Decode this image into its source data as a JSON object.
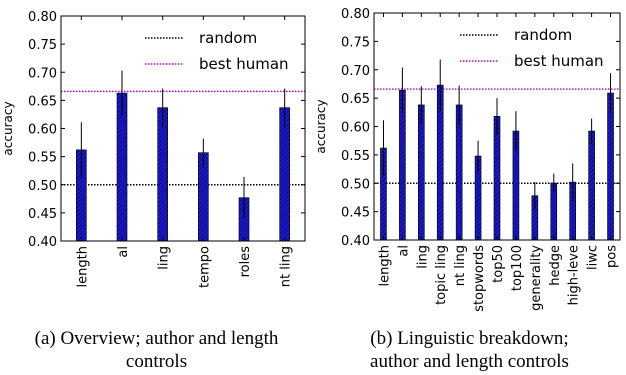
{
  "chart_data": [
    {
      "type": "bar",
      "categories": [
        "length",
        "al",
        "ling",
        "tempo",
        "roles",
        "nt ling"
      ],
      "values": [
        0.562,
        0.663,
        0.637,
        0.557,
        0.477,
        0.637
      ],
      "errors": [
        0.049,
        0.04,
        0.034,
        0.025,
        0.037,
        0.034
      ],
      "ylabel": "accuracy",
      "ylim": [
        0.4,
        0.8
      ],
      "yticks": [
        "0.40",
        "0.45",
        "0.50",
        "0.55",
        "0.60",
        "0.65",
        "0.70",
        "0.75",
        "0.80"
      ],
      "reference_lines": [
        {
          "name": "random",
          "value": 0.5,
          "color": "#000000"
        },
        {
          "name": "best human",
          "value": 0.666,
          "color": "#bf00bf"
        }
      ],
      "bar_color": "#1a1acc",
      "legend_position": "top-right",
      "caption": [
        "(a) Overview; author and length",
        "controls"
      ]
    },
    {
      "type": "bar",
      "categories": [
        "length",
        "al",
        "ling",
        "topic ling",
        "nt ling",
        "stopwords",
        "top50",
        "top100",
        "generality",
        "hedge",
        "high-leve",
        "liwc",
        "pos"
      ],
      "values": [
        0.562,
        0.664,
        0.638,
        0.673,
        0.638,
        0.548,
        0.618,
        0.592,
        0.478,
        0.5,
        0.502,
        0.592,
        0.659
      ],
      "errors": [
        0.049,
        0.04,
        0.033,
        0.045,
        0.034,
        0.027,
        0.032,
        0.035,
        0.024,
        0.017,
        0.033,
        0.022,
        0.035
      ],
      "ylabel": "accuracy",
      "ylim": [
        0.4,
        0.8
      ],
      "yticks": [
        "0.40",
        "0.45",
        "0.50",
        "0.55",
        "0.60",
        "0.65",
        "0.70",
        "0.75",
        "0.80"
      ],
      "reference_lines": [
        {
          "name": "random",
          "value": 0.5,
          "color": "#000000"
        },
        {
          "name": "best human",
          "value": 0.666,
          "color": "#bf00bf"
        }
      ],
      "bar_color": "#1a1acc",
      "legend_position": "top-right",
      "caption": [
        "(b) Linguistic breakdown;",
        "author and length controls"
      ]
    }
  ]
}
